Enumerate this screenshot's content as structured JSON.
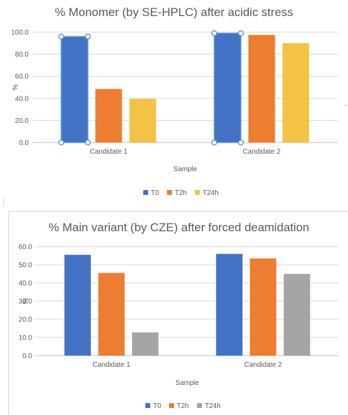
{
  "chart_data": [
    {
      "type": "bar",
      "title": "% Monomer (by SE-HPLC) after acidic stress",
      "xlabel": "Sample",
      "ylabel": "%",
      "categories": [
        "Candidate 1",
        "Candidate 2"
      ],
      "ylim": [
        0,
        100
      ],
      "yticks": [
        "0.0",
        "20.0",
        "40.0",
        "60.0",
        "80.0",
        "100.0"
      ],
      "grid": true,
      "legend_position": "bottom",
      "selected_series": "T0",
      "series": [
        {
          "name": "T0",
          "color": "#4472C4",
          "values": [
            96,
            99
          ]
        },
        {
          "name": "T2h",
          "color": "#ED7D31",
          "values": [
            48.5,
            97.5
          ]
        },
        {
          "name": "T24h",
          "color": "#F4C244",
          "values": [
            39.5,
            90
          ]
        }
      ]
    },
    {
      "type": "bar",
      "title": "% Main variant (by CZE) after forced deamidation",
      "xlabel": "Sample",
      "ylabel": "%",
      "categories": [
        "Candidate 1",
        "Candidate 2"
      ],
      "ylim": [
        0,
        60
      ],
      "yticks": [
        "0.0",
        "10.0",
        "20.0",
        "30.0",
        "40.0",
        "50.0",
        "60.0"
      ],
      "grid": true,
      "legend_position": "bottom",
      "series": [
        {
          "name": "T0",
          "color": "#4472C4",
          "values": [
            55.5,
            56
          ]
        },
        {
          "name": "T2h",
          "color": "#ED7D31",
          "values": [
            45.5,
            53.5
          ]
        },
        {
          "name": "T24h",
          "color": "#A5A5A5",
          "values": [
            12.8,
            45
          ]
        }
      ]
    }
  ]
}
